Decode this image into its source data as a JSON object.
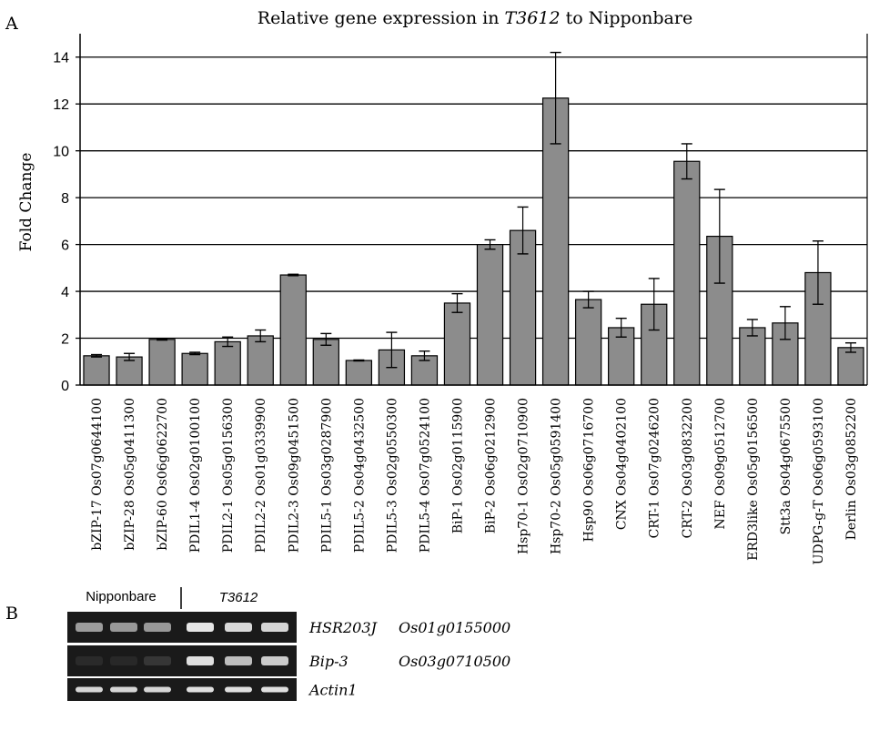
{
  "panel_a": {
    "label": "A",
    "title_prefix": "Relative gene expression in ",
    "title_italic": "T3612",
    "title_suffix": " to Nipponbare"
  },
  "chart_data": {
    "type": "bar",
    "title": "Relative gene expression in T3612 to Nipponbare",
    "xlabel": "",
    "ylabel": "Fold Change",
    "ylim": [
      0,
      15
    ],
    "yticks": [
      0,
      2,
      4,
      6,
      8,
      10,
      12,
      14
    ],
    "grid": true,
    "bar_color": "#8c8c8c",
    "categories": [
      "bZIP-17 Os07g0644100",
      "bZIP-28 Os05g0411300",
      "bZIP-60 Os06g0622700",
      "PDIL1-4 Os02g0100100",
      "PDIL2-1 Os05g0156300",
      "PDIL2-2 Os01g0339900",
      "PDIL2-3 Os09g0451500",
      "PDIL5-1 Os03g0287900",
      "PDIL5-2 Os04g0432500",
      "PDIL5-3 Os02g0550300",
      "PDIL5-4 Os07g0524100",
      "BiP-1 Os02g0115900",
      "BiP-2 Os06g0212900",
      "Hsp70-1 Os02g0710900",
      "Hsp70-2 Os05g0591400",
      "Hsp90 Os06g0716700",
      "CNX Os04g0402100",
      "CRT-1 Os07g0246200",
      "CRT-2 Os03g0832200",
      "NEF Os09g0512700",
      "ERD3like Os05g0156500",
      "Stt3a Os04g0675500",
      "UDPG-g-T Os06g0593100",
      "Derlin Os03g0852200"
    ],
    "values": [
      1.25,
      1.2,
      1.95,
      1.35,
      1.85,
      2.1,
      4.7,
      1.95,
      1.05,
      1.5,
      1.25,
      3.5,
      6.0,
      6.6,
      12.25,
      3.65,
      2.45,
      3.45,
      9.55,
      6.35,
      2.45,
      2.65,
      4.8,
      1.6
    ],
    "errors": [
      0.05,
      0.15,
      0.03,
      0.05,
      0.2,
      0.25,
      0.03,
      0.25,
      0.02,
      0.75,
      0.2,
      0.4,
      0.2,
      1.0,
      1.95,
      0.35,
      0.4,
      1.1,
      0.75,
      2.0,
      0.35,
      0.7,
      1.35,
      0.2
    ]
  },
  "panel_b": {
    "label": "B",
    "nipponbare_label": "Nipponbare",
    "t3612_label": "T3612",
    "rows": [
      {
        "gene": "HSR203J",
        "locus": "Os01g0155000",
        "bands": [
          0.62,
          0.6,
          0.6,
          0.98,
          0.92,
          0.9
        ]
      },
      {
        "gene": "Bip-3",
        "locus": "Os03g0710500",
        "bands": [
          0.06,
          0.05,
          0.12,
          0.95,
          0.78,
          0.85
        ]
      },
      {
        "gene": "Actin1",
        "locus": "",
        "bands": [
          0.9,
          0.9,
          0.9,
          0.95,
          0.95,
          0.95
        ]
      }
    ]
  }
}
